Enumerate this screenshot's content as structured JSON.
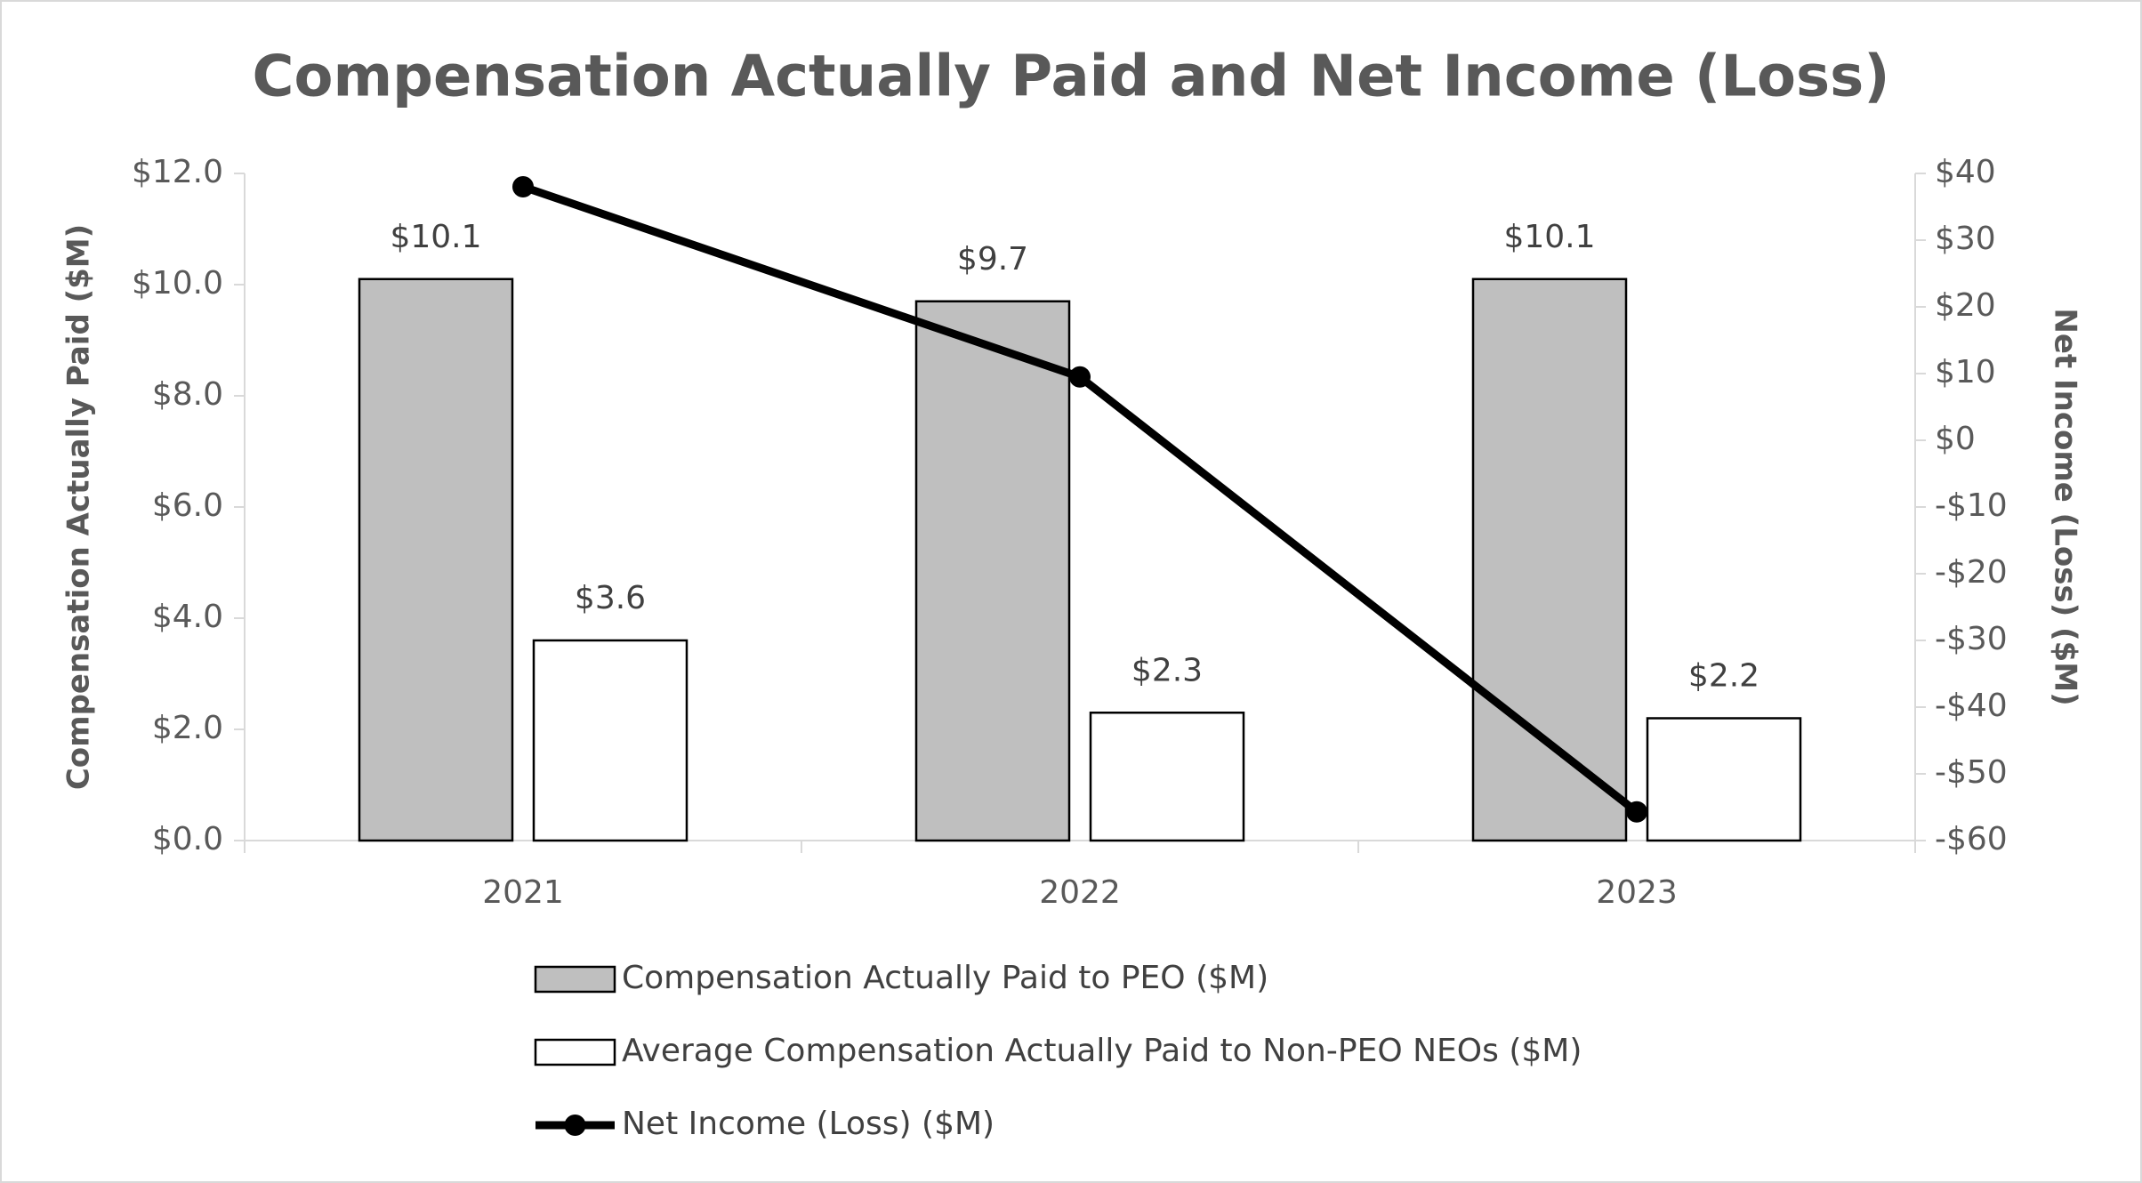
{
  "chart_data": {
    "type": "bar",
    "title": "Compensation Actually Paid and Net Income (Loss)",
    "y_label": "Compensation Actually Paid ($M)",
    "y2_label": "Net Income (Loss) ($M)",
    "categories": [
      "2021",
      "2022",
      "2023"
    ],
    "series": [
      {
        "name": "Compensation Actually Paid to PEO ($M)",
        "type": "bar",
        "color": "#bfbfbf",
        "values": [
          10.1,
          9.7,
          10.1
        ],
        "value_labels": [
          "$10.1",
          "$9.7",
          "$10.1"
        ]
      },
      {
        "name": "Average Compensation Actually Paid to Non-PEO NEOs ($M)",
        "type": "bar",
        "color": "#ffffff",
        "values": [
          3.6,
          2.3,
          2.2
        ],
        "value_labels": [
          "$3.6",
          "$2.3",
          "$2.2"
        ]
      },
      {
        "name": "Net Income (Loss) ($M)",
        "type": "line",
        "axis": "y2",
        "color": "#000000",
        "values": [
          38,
          9.5,
          -55.7
        ]
      }
    ],
    "ylim": [
      0,
      12
    ],
    "yticks": [
      {
        "value": 0,
        "label": "$0.0"
      },
      {
        "value": 2,
        "label": "$2.0"
      },
      {
        "value": 4,
        "label": "$4.0"
      },
      {
        "value": 6,
        "label": "$6.0"
      },
      {
        "value": 8,
        "label": "$8.0"
      },
      {
        "value": 10,
        "label": "$10.0"
      },
      {
        "value": 12,
        "label": "$12.0"
      }
    ],
    "y2lim": [
      -60,
      40
    ],
    "y2ticks": [
      {
        "value": -60,
        "label": "-$60"
      },
      {
        "value": -50,
        "label": "-$50"
      },
      {
        "value": -40,
        "label": "-$40"
      },
      {
        "value": -30,
        "label": "-$30"
      },
      {
        "value": -20,
        "label": "-$20"
      },
      {
        "value": -10,
        "label": "-$10"
      },
      {
        "value": 0,
        "label": "$0"
      },
      {
        "value": 10,
        "label": "$10"
      },
      {
        "value": 20,
        "label": "$20"
      },
      {
        "value": 30,
        "label": "$30"
      },
      {
        "value": 40,
        "label": "$40"
      }
    ],
    "grid": false,
    "legend": "bottom"
  }
}
